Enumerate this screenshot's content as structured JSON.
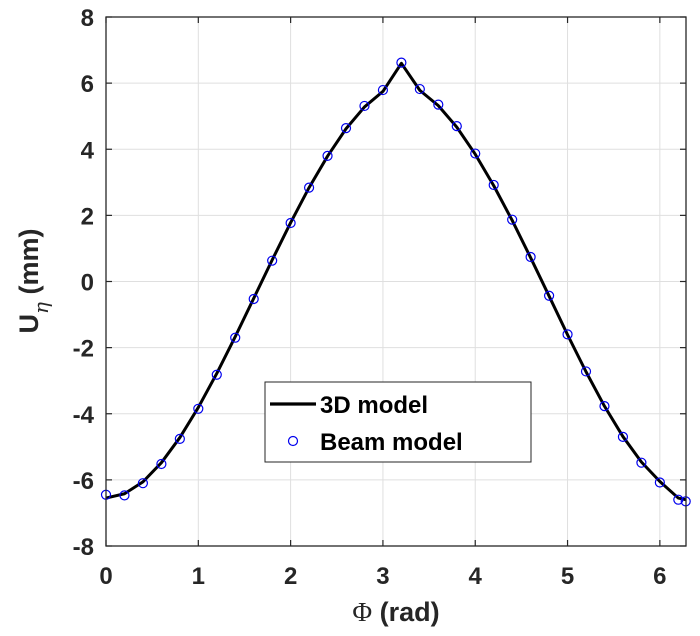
{
  "chart_data": {
    "type": "line",
    "xlabel_symbol": "Φ",
    "xlabel_text": " (rad)",
    "ylabel_main": "U",
    "ylabel_sub": "η",
    "ylabel_unit": " (mm)",
    "xlim": [
      0,
      6.2832
    ],
    "ylim": [
      -8,
      8
    ],
    "xticks": [
      0,
      1,
      2,
      3,
      4,
      5,
      6
    ],
    "xtick_labels": [
      "0",
      "1",
      "2",
      "3",
      "4",
      "5",
      "6"
    ],
    "yticks": [
      8,
      6,
      4,
      2,
      0,
      -2,
      -4,
      -6,
      -8
    ],
    "ytick_labels": [
      "8",
      "6",
      "4",
      "2",
      "0",
      "-2",
      "-4",
      "-6",
      "-8"
    ],
    "grid": true,
    "legend_position": "center-bottom",
    "series": [
      {
        "name": "3D model",
        "style": "line",
        "color": "#000000",
        "x": [
          0,
          0.2,
          0.4,
          0.6,
          0.8,
          1.0,
          1.2,
          1.4,
          1.6,
          1.8,
          2.0,
          2.2,
          2.4,
          2.6,
          2.8,
          3.0,
          3.2,
          3.4,
          3.6,
          3.8,
          4.0,
          4.2,
          4.4,
          4.6,
          4.8,
          5.0,
          5.2,
          5.4,
          5.6,
          5.8,
          6.0,
          6.2,
          6.28
        ],
        "y": [
          -6.55,
          -6.42,
          -6.06,
          -5.48,
          -4.72,
          -3.81,
          -2.78,
          -1.67,
          -0.51,
          0.65,
          1.78,
          2.84,
          3.79,
          4.62,
          5.28,
          5.75,
          6.6,
          5.78,
          5.32,
          4.67,
          3.85,
          2.9,
          1.85,
          0.72,
          -0.44,
          -1.61,
          -2.73,
          -3.77,
          -4.69,
          -5.46,
          -6.05,
          -6.55,
          -6.6
        ]
      },
      {
        "name": "Beam model",
        "style": "circles",
        "color": "#0000ee",
        "x": [
          0,
          0.2,
          0.4,
          0.6,
          0.8,
          1.0,
          1.2,
          1.4,
          1.6,
          1.8,
          2.0,
          2.2,
          2.4,
          2.6,
          2.8,
          3.0,
          3.2,
          3.4,
          3.6,
          3.8,
          4.0,
          4.2,
          4.4,
          4.6,
          4.8,
          5.0,
          5.2,
          5.4,
          5.6,
          5.8,
          6.0,
          6.2,
          6.28
        ],
        "y": [
          -6.45,
          -6.47,
          -6.1,
          -5.52,
          -4.76,
          -3.85,
          -2.82,
          -1.7,
          -0.53,
          0.63,
          1.77,
          2.84,
          3.8,
          4.64,
          5.31,
          5.79,
          6.62,
          5.82,
          5.35,
          4.7,
          3.87,
          2.92,
          1.87,
          0.74,
          -0.43,
          -1.6,
          -2.72,
          -3.77,
          -4.7,
          -5.48,
          -6.08,
          -6.6,
          -6.65
        ]
      }
    ]
  }
}
